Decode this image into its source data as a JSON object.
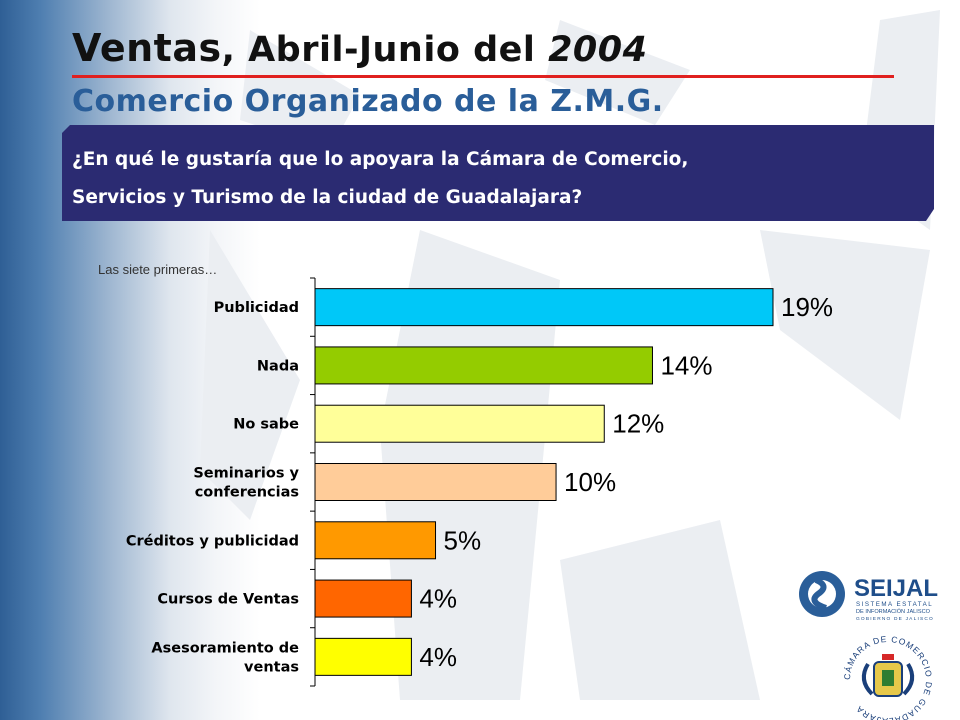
{
  "slide": {
    "title_main": "Ventas",
    "title_rest": ", Abril-Junio del ",
    "title_year": "2004",
    "subtitle": "Comercio Organizado de la Z.M.G.",
    "question_line1": "¿En qué le gustaría que lo apoyara la Cámara de Comercio,",
    "question_line2": "Servicios y Turismo de la ciudad de Guadalajara?",
    "note": "Las siete primeras…"
  },
  "logos": {
    "seijal_name": "SEIJAL",
    "seijal_line1": "SISTEMA ESTATAL",
    "seijal_line2": "DE INFORMACIÓN JALISCO",
    "seijal_line3": "GOBIERNO DE JALISCO",
    "camara_text": "CÁMARA DE COMERCIO DE GUADALAJARA"
  },
  "chart_data": {
    "type": "bar",
    "orientation": "horizontal",
    "categories": [
      [
        "Publicidad"
      ],
      [
        "Nada"
      ],
      [
        "No sabe"
      ],
      [
        "Seminarios y",
        "conferencias"
      ],
      [
        "Créditos y publicidad"
      ],
      [
        "Cursos de Ventas"
      ],
      [
        "Asesoramiento de",
        "ventas"
      ]
    ],
    "values": [
      19,
      14,
      12,
      10,
      5,
      4,
      4
    ],
    "labels": [
      "19%",
      "14%",
      "12%",
      "10%",
      "5%",
      "4%",
      "4%"
    ],
    "colors": [
      "#00c8f8",
      "#94cc00",
      "#ffff99",
      "#ffcc99",
      "#ff9900",
      "#ff6600",
      "#ffff00"
    ],
    "unit": "%",
    "xlim": [
      0,
      25
    ]
  }
}
